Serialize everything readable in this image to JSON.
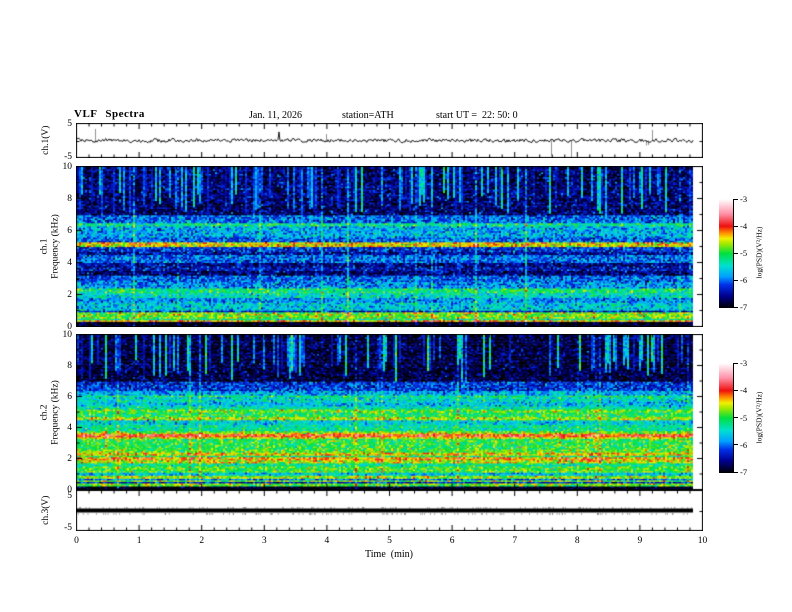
{
  "header": {
    "title": "VLF Spectra",
    "date": "Jan. 11, 2026",
    "station": "station=ATH",
    "start_ut": "start UT =  22: 50: 0"
  },
  "axes": {
    "x": {
      "label": "Time  (min)",
      "ticks": [
        0,
        1,
        2,
        3,
        4,
        5,
        6,
        7,
        8,
        9,
        10
      ],
      "minor_step": 0.2,
      "range": [
        0,
        10
      ]
    },
    "wave_y": {
      "label": "ch.1(V)",
      "ticks": [
        5,
        -5
      ],
      "range": [
        -5,
        5
      ]
    },
    "spec1_y": {
      "label_ch": "ch.1",
      "label_freq": "Frequency  (kHz)",
      "ticks": [
        10,
        8,
        6,
        4,
        2,
        0
      ],
      "range": [
        0,
        10
      ]
    },
    "spec2_y": {
      "label_ch": "ch.2",
      "label_freq": "Frequency  (kHz)",
      "ticks": [
        10,
        8,
        6,
        4,
        2,
        0
      ],
      "range": [
        0,
        10
      ]
    },
    "ch3_y": {
      "label": "ch.3(V)",
      "ticks": [
        5,
        -5
      ],
      "range": [
        -5,
        5
      ]
    }
  },
  "colorbar": {
    "label": "log(PSD)(V²/Hz)",
    "ticks": [
      -3,
      -4,
      -5,
      -6,
      -7
    ],
    "range": [
      -7,
      -3
    ],
    "stops": [
      {
        "level": -7.0,
        "color": "#000000"
      },
      {
        "level": -6.55,
        "color": "#000090"
      },
      {
        "level": -6.15,
        "color": "#0030e8"
      },
      {
        "level": -5.85,
        "color": "#00a0ff"
      },
      {
        "level": -5.45,
        "color": "#00e0d0"
      },
      {
        "level": -5.0,
        "color": "#00e040"
      },
      {
        "level": -4.65,
        "color": "#a0e800"
      },
      {
        "level": -4.45,
        "color": "#f0f000"
      },
      {
        "level": -4.25,
        "color": "#ff9000"
      },
      {
        "level": -4.0,
        "color": "#ee1010"
      },
      {
        "level": -3.55,
        "color": "#ff90a8"
      },
      {
        "level": -3.2,
        "color": "#ffd8e0"
      },
      {
        "level": -3.0,
        "color": "#ffffff"
      }
    ]
  },
  "chart_data": [
    {
      "type": "line",
      "name": "ch1_waveform",
      "ylabel": "ch.1(V)",
      "ylim": [
        -5,
        5
      ],
      "xlim": [
        0,
        10
      ],
      "description": "broadband noise trace centered at 0 V, typical amplitude about ±1 V, sporadic impulsive spikes to about ±4 V, occasional grey spikes, data ends near 9.85 min",
      "baseline": 0,
      "noise_v": 0.55,
      "spike_probability": 0.012,
      "spike_v": 3.6,
      "gray_spike_probability": 0.009
    },
    {
      "type": "heatmap",
      "name": "ch1_spectrogram",
      "ylabel": "ch.1 Frequency (kHz)",
      "xlabel": "Time (min)",
      "xlim": [
        0,
        10
      ],
      "ylim": [
        0,
        10
      ],
      "value_range": [
        -7,
        -3
      ],
      "noise_sigma": 0.32,
      "bands": [
        [
          0.0,
          0.28,
          -7.0
        ],
        [
          0.28,
          0.38,
          -4.3
        ],
        [
          0.38,
          0.5,
          -5.2
        ],
        [
          0.5,
          0.9,
          -4.75
        ],
        [
          0.9,
          1.05,
          -6.3
        ],
        [
          1.05,
          1.5,
          -5.6
        ],
        [
          1.5,
          1.8,
          -5.85
        ],
        [
          1.8,
          2.1,
          -5.45
        ],
        [
          2.1,
          2.35,
          -5.15
        ],
        [
          2.35,
          2.8,
          -5.85
        ],
        [
          2.8,
          3.25,
          -6.05
        ],
        [
          3.25,
          3.45,
          -6.65
        ],
        [
          3.45,
          3.7,
          -6.35
        ],
        [
          3.7,
          4.05,
          -6.55
        ],
        [
          4.05,
          4.5,
          -6.0
        ],
        [
          4.5,
          4.75,
          -6.45
        ],
        [
          4.75,
          5.05,
          -6.2
        ],
        [
          5.05,
          5.35,
          -4.45
        ],
        [
          5.35,
          5.6,
          -6.05
        ],
        [
          5.6,
          6.35,
          -5.75
        ],
        [
          6.35,
          6.55,
          -5.25
        ],
        [
          6.55,
          7.0,
          -6.0
        ],
        [
          7.0,
          10.0,
          -6.65
        ]
      ],
      "streaks": {
        "fmin": 6.9,
        "column_probability": 0.3,
        "strength": [
          0.5,
          2.1
        ],
        "full_height_probability": 0.05,
        "full_height_strength": 0.45
      }
    },
    {
      "type": "heatmap",
      "name": "ch2_spectrogram",
      "ylabel": "ch.2 Frequency (kHz)",
      "xlabel": "Time (min)",
      "xlim": [
        0,
        10
      ],
      "ylim": [
        0,
        10
      ],
      "value_range": [
        -7,
        -3
      ],
      "noise_sigma": 0.3,
      "bands": [
        [
          0.0,
          0.2,
          -7.0
        ],
        [
          0.2,
          0.28,
          -4.9
        ],
        [
          0.28,
          0.34,
          -6.5
        ],
        [
          0.34,
          0.42,
          -4.7
        ],
        [
          0.42,
          0.5,
          -6.3
        ],
        [
          0.5,
          0.6,
          -4.8
        ],
        [
          0.6,
          0.7,
          -6.0
        ],
        [
          0.7,
          0.95,
          -4.7
        ],
        [
          0.95,
          1.1,
          -5.6
        ],
        [
          1.1,
          1.55,
          -4.9
        ],
        [
          1.55,
          1.75,
          -5.25
        ],
        [
          1.75,
          1.95,
          -4.6
        ],
        [
          1.95,
          2.1,
          -4.3
        ],
        [
          2.1,
          2.2,
          -5.1
        ],
        [
          2.2,
          2.4,
          -4.45
        ],
        [
          2.4,
          2.6,
          -4.85
        ],
        [
          2.6,
          3.3,
          -5.0
        ],
        [
          3.3,
          3.42,
          -4.5
        ],
        [
          3.42,
          3.58,
          -4.0
        ],
        [
          3.58,
          3.72,
          -4.6
        ],
        [
          3.72,
          3.8,
          -4.9
        ],
        [
          3.8,
          4.2,
          -5.3
        ],
        [
          4.2,
          4.55,
          -5.55
        ],
        [
          4.55,
          4.7,
          -4.65
        ],
        [
          4.7,
          5.0,
          -5.05
        ],
        [
          5.0,
          5.2,
          -4.8
        ],
        [
          5.2,
          5.45,
          -5.35
        ],
        [
          5.45,
          5.75,
          -5.65
        ],
        [
          5.75,
          6.0,
          -5.45
        ],
        [
          6.0,
          6.15,
          -5.15
        ],
        [
          6.15,
          6.45,
          -5.75
        ],
        [
          6.45,
          7.0,
          -6.2
        ],
        [
          7.0,
          10.0,
          -6.8
        ]
      ],
      "streaks": {
        "fmin": 7.0,
        "column_probability": 0.28,
        "strength": [
          0.6,
          2.3
        ],
        "full_height_probability": 0.04,
        "full_height_strength": 0.4
      }
    },
    {
      "type": "line",
      "name": "ch3_waveform",
      "ylabel": "ch.3(V)",
      "ylim": [
        -5,
        5
      ],
      "xlim": [
        0,
        10
      ],
      "description": "flat saturated trace at 0 V drawn as a thick black bar, ends near 9.8 min",
      "baseline": 0,
      "flat": true
    }
  ]
}
